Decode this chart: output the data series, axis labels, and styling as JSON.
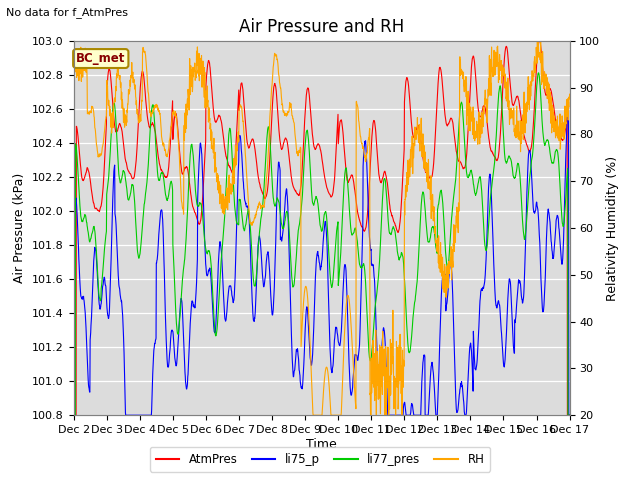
{
  "title": "Air Pressure and RH",
  "top_left_text": "No data for f_AtmPres",
  "legend_label": "BC_met",
  "ylabel_left": "Air Pressure (kPa)",
  "ylabel_right": "Relativity Humidity (%)",
  "xlabel": "Time",
  "xlim": [
    0,
    360
  ],
  "ylim_left": [
    100.8,
    103.0
  ],
  "ylim_right": [
    20,
    100
  ],
  "xtick_labels": [
    "Dec 2",
    "Dec 3",
    "Dec 4",
    "Dec 5",
    "Dec 6",
    "Dec 7",
    "Dec 8",
    "Dec 9",
    "Dec 10",
    "Dec 11",
    "Dec 12",
    "Dec 13",
    "Dec 14",
    "Dec 15",
    "Dec 16",
    "Dec 17"
  ],
  "yticks_left": [
    100.8,
    101.0,
    101.2,
    101.4,
    101.6,
    101.8,
    102.0,
    102.2,
    102.4,
    102.6,
    102.8,
    103.0
  ],
  "yticks_right": [
    20,
    30,
    40,
    50,
    60,
    70,
    80,
    90,
    100
  ],
  "colors": {
    "AtmPres": "#FF0000",
    "li75_p": "#0000FF",
    "li77_pres": "#00CC00",
    "RH": "#FFA500"
  },
  "bg_color": "#DCDCDC",
  "title_fontsize": 12,
  "axis_fontsize": 9,
  "tick_fontsize": 8,
  "legend_box_edge": "#AA8800",
  "legend_box_bg": "#FFFFCC",
  "legend_box_text": "#880000"
}
